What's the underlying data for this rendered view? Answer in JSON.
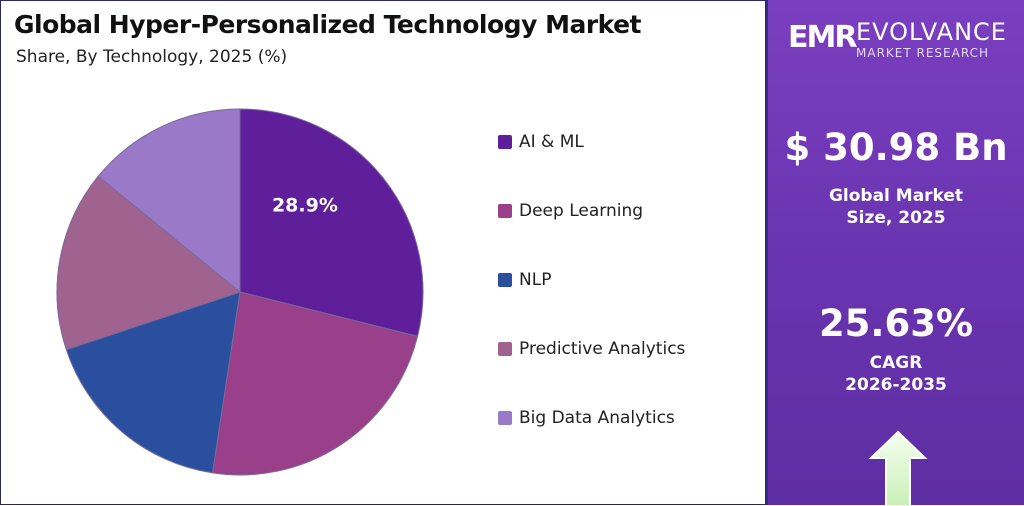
{
  "title": "Global Hyper-Personalized Technology Market",
  "subtitle": "Share, By Technology, 2025 (%)",
  "chart_data": {
    "type": "pie",
    "title": "Global Hyper-Personalized Technology Market",
    "subtitle": "Share, By Technology, 2025 (%)",
    "categories": [
      "AI & ML",
      "Deep Learning",
      "NLP",
      "Predictive Analytics",
      "Big Data Analytics"
    ],
    "values": [
      28.9,
      23.5,
      17.5,
      16.0,
      14.1
    ],
    "colors": [
      "#5f1f9a",
      "#9a3f8a",
      "#2a4f9e",
      "#a0628f",
      "#9a7ac8"
    ],
    "data_labels": [
      "28.9%",
      "",
      "",
      "",
      ""
    ],
    "legend_placement": "right"
  },
  "logo": {
    "mark": "EMR",
    "name": "EVOLVANCE",
    "tagline": "MARKET RESEARCH"
  },
  "market_size": {
    "value": "$ 30.98 Bn",
    "label_line1": "Global Market",
    "label_line2": "Size, 2025"
  },
  "cagr": {
    "value": "25.63%",
    "label_line1": "CAGR",
    "label_line2": "2026-2035"
  },
  "icons": {
    "arrow": "up-arrow-icon"
  }
}
